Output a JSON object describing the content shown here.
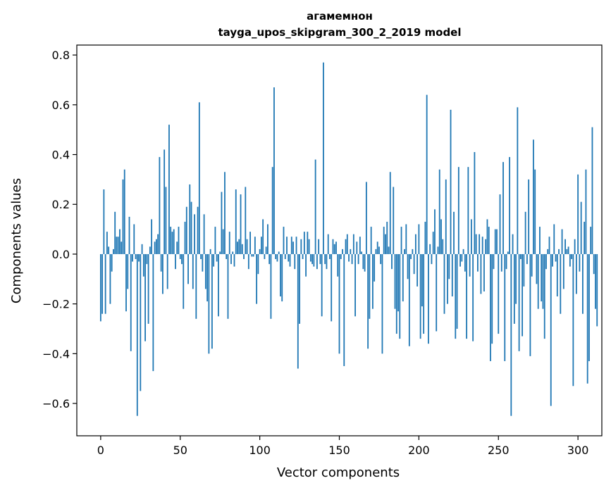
{
  "chart_data": {
    "type": "bar",
    "title": "агамемнон",
    "subtitle": "tayga_upos_skipgram_300_2_2019 model",
    "xlabel": "Vector components",
    "ylabel": "Components values",
    "xlim": [
      -15,
      315
    ],
    "ylim": [
      -0.73,
      0.84
    ],
    "xticks": [
      0,
      50,
      100,
      150,
      200,
      250,
      300
    ],
    "yticks": [
      -0.6,
      -0.4,
      -0.2,
      0.0,
      0.2,
      0.4,
      0.6,
      0.8
    ],
    "ytick_labels": [
      "−0.6",
      "−0.4",
      "−0.2",
      "0.0",
      "0.2",
      "0.4",
      "0.6",
      "0.8"
    ],
    "grid": false,
    "bar_color": "#1f77b4",
    "values": [
      -0.27,
      -0.24,
      0.26,
      -0.24,
      0.09,
      0.03,
      -0.2,
      -0.07,
      0.02,
      0.17,
      0.07,
      0.07,
      0.1,
      0.05,
      0.3,
      0.34,
      -0.23,
      -0.14,
      0.15,
      -0.39,
      -0.03,
      0.12,
      -0.02,
      -0.65,
      -0.03,
      -0.55,
      0.04,
      -0.09,
      -0.35,
      -0.04,
      -0.28,
      0.03,
      0.14,
      -0.47,
      0.05,
      0.06,
      0.08,
      0.39,
      -0.07,
      -0.16,
      0.42,
      0.27,
      -0.14,
      0.52,
      0.11,
      0.09,
      0.1,
      -0.06,
      0.05,
      0.11,
      -0.02,
      -0.04,
      -0.22,
      0.13,
      0.19,
      -0.12,
      0.28,
      0.21,
      -0.14,
      0.16,
      -0.26,
      0.19,
      0.61,
      -0.02,
      -0.07,
      0.16,
      -0.14,
      -0.19,
      -0.4,
      0.02,
      -0.38,
      -0.05,
      0.11,
      -0.03,
      -0.25,
      0.01,
      0.25,
      0.1,
      0.33,
      -0.02,
      -0.26,
      0.09,
      -0.04,
      0.01,
      -0.05,
      0.26,
      0.05,
      0.06,
      0.24,
      0.04,
      -0.02,
      0.27,
      0.06,
      -0.06,
      0.09,
      -0.01,
      -0.01,
      0.07,
      -0.2,
      -0.08,
      0.02,
      0.07,
      0.14,
      -0.02,
      0.03,
      0.12,
      -0.04,
      -0.26,
      0.35,
      0.67,
      -0.02,
      -0.03,
      0.01,
      -0.17,
      -0.19,
      0.11,
      -0.02,
      0.07,
      -0.03,
      -0.05,
      0.07,
      0.05,
      -0.06,
      0.07,
      -0.46,
      -0.28,
      0.06,
      -0.02,
      0.09,
      -0.09,
      0.09,
      0.06,
      -0.03,
      -0.04,
      -0.05,
      0.38,
      -0.06,
      0.06,
      -0.04,
      -0.25,
      0.77,
      -0.04,
      -0.06,
      0.08,
      -0.02,
      -0.27,
      0.06,
      0.04,
      0.05,
      -0.09,
      -0.4,
      -0.02,
      0.02,
      -0.45,
      0.06,
      0.08,
      -0.03,
      0.02,
      -0.04,
      0.08,
      -0.25,
      0.05,
      -0.04,
      0.07,
      0.01,
      -0.06,
      -0.07,
      0.29,
      -0.38,
      -0.26,
      0.11,
      -0.22,
      -0.11,
      0.02,
      0.05,
      0.03,
      -0.04,
      -0.4,
      0.11,
      0.08,
      0.13,
      0.03,
      0.33,
      -0.06,
      0.27,
      -0.22,
      -0.32,
      -0.23,
      -0.34,
      0.11,
      -0.19,
      0.02,
      0.12,
      -0.1,
      -0.37,
      -0.02,
      0.02,
      -0.08,
      0.08,
      -0.13,
      0.12,
      -0.34,
      -0.21,
      -0.32,
      0.13,
      0.64,
      -0.36,
      0.04,
      -0.04,
      0.09,
      0.18,
      -0.31,
      0.03,
      0.34,
      0.14,
      0.06,
      -0.24,
      0.3,
      -0.2,
      -0.1,
      0.58,
      -0.17,
      0.17,
      -0.34,
      -0.3,
      0.35,
      -0.05,
      -0.03,
      0.02,
      -0.07,
      -0.34,
      0.35,
      -0.09,
      0.14,
      -0.35,
      0.41,
      0.08,
      -0.07,
      0.08,
      -0.16,
      0.07,
      -0.15,
      0.06,
      0.14,
      0.11,
      -0.43,
      -0.36,
      -0.06,
      0.1,
      0.1,
      -0.32,
      0.24,
      -0.07,
      0.37,
      -0.43,
      -0.06,
      0.01,
      0.39,
      -0.65,
      0.08,
      -0.28,
      -0.2,
      0.59,
      -0.39,
      -0.02,
      -0.33,
      -0.13,
      0.17,
      -0.04,
      0.3,
      -0.41,
      -0.09,
      0.46,
      0.34,
      -0.12,
      -0.22,
      0.11,
      -0.19,
      -0.22,
      -0.34,
      -0.06,
      0.02,
      0.07,
      -0.61,
      -0.05,
      0.12,
      -0.03,
      -0.17,
      0.02,
      -0.24,
      0.1,
      -0.14,
      0.06,
      0.02,
      0.03,
      -0.05,
      -0.02,
      -0.53,
      0.06,
      -0.16,
      0.32,
      -0.07,
      0.21,
      -0.24,
      0.13,
      0.34,
      -0.52,
      -0.43,
      0.11,
      0.51,
      -0.08,
      -0.22,
      -0.29
    ]
  }
}
